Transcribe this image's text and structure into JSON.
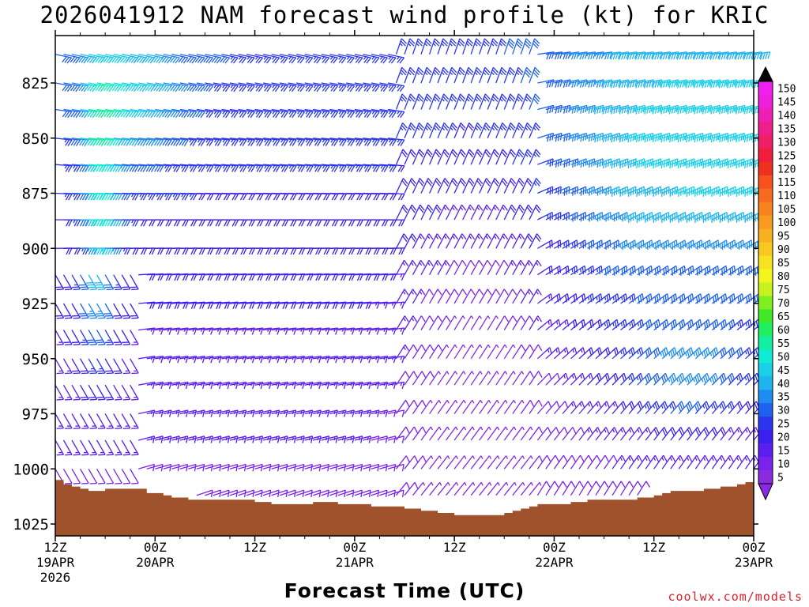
{
  "header": {
    "title": "2026041912 NAM forecast wind profile (kt) for KRIC",
    "x_axis_title": "Forecast Time (UTC)",
    "credit": "coolwx.com/models"
  },
  "chart_data": {
    "type": "wind-barb time-height section",
    "title": "2026041912 NAM forecast wind profile (kt) for KRIC",
    "model": "NAM",
    "init": "2026041912",
    "station": "KRIC",
    "units": "kt",
    "xlabel": "Forecast Time (UTC)",
    "ylabel": "",
    "x_range_hours": [
      0,
      84
    ],
    "y_range_mb": [
      1030,
      812
    ],
    "y_ticks": [
      825,
      850,
      875,
      900,
      925,
      950,
      975,
      1000,
      1025
    ],
    "x_ticks": [
      {
        "hour": 0,
        "label": "12Z",
        "sub": "19APR",
        "year": "2026"
      },
      {
        "hour": 12,
        "label": "00Z",
        "sub": "20APR",
        "year": ""
      },
      {
        "hour": 24,
        "label": "12Z",
        "sub": "",
        "year": ""
      },
      {
        "hour": 36,
        "label": "00Z",
        "sub": "21APR",
        "year": ""
      },
      {
        "hour": 48,
        "label": "12Z",
        "sub": "",
        "year": ""
      },
      {
        "hour": 60,
        "label": "00Z",
        "sub": "22APR",
        "year": ""
      },
      {
        "hour": 72,
        "label": "12Z",
        "sub": "",
        "year": ""
      },
      {
        "hour": 84,
        "label": "00Z",
        "sub": "23APR",
        "year": ""
      }
    ],
    "surface_pressure_mb": [
      [
        0,
        1005
      ],
      [
        1,
        1007
      ],
      [
        2,
        1008
      ],
      [
        3,
        1009
      ],
      [
        4,
        1010
      ],
      [
        6,
        1009
      ],
      [
        8,
        1009
      ],
      [
        10,
        1009
      ],
      [
        11,
        1011
      ],
      [
        12,
        1011
      ],
      [
        13,
        1012
      ],
      [
        14,
        1013
      ],
      [
        16,
        1014
      ],
      [
        18,
        1014
      ],
      [
        20,
        1014
      ],
      [
        22,
        1014
      ],
      [
        24,
        1015
      ],
      [
        26,
        1016
      ],
      [
        28,
        1016
      ],
      [
        30,
        1016
      ],
      [
        31,
        1015
      ],
      [
        32,
        1015
      ],
      [
        34,
        1016
      ],
      [
        36,
        1016
      ],
      [
        38,
        1017
      ],
      [
        40,
        1017
      ],
      [
        42,
        1018
      ],
      [
        44,
        1019
      ],
      [
        46,
        1020
      ],
      [
        48,
        1021
      ],
      [
        50,
        1021
      ],
      [
        52,
        1021
      ],
      [
        54,
        1020
      ],
      [
        55,
        1019
      ],
      [
        56,
        1018
      ],
      [
        57,
        1017
      ],
      [
        58,
        1016
      ],
      [
        60,
        1016
      ],
      [
        62,
        1015
      ],
      [
        64,
        1014
      ],
      [
        66,
        1014
      ],
      [
        68,
        1014
      ],
      [
        70,
        1013
      ],
      [
        72,
        1012
      ],
      [
        73,
        1011
      ],
      [
        74,
        1010
      ],
      [
        76,
        1010
      ],
      [
        78,
        1009
      ],
      [
        80,
        1008
      ],
      [
        82,
        1007
      ],
      [
        83,
        1006
      ],
      [
        84,
        1006
      ]
    ],
    "colorbar": {
      "min": 5,
      "max": 150,
      "step": 5,
      "labels": [
        150,
        145,
        140,
        135,
        130,
        125,
        120,
        115,
        110,
        105,
        100,
        95,
        90,
        85,
        80,
        75,
        70,
        65,
        60,
        55,
        50,
        45,
        40,
        35,
        30,
        25,
        20,
        15,
        10,
        5
      ],
      "colors": {
        "5": "#8a2be2",
        "10": "#7a22ee",
        "15": "#5b1ef2",
        "20": "#3b1ff0",
        "25": "#2a35f0",
        "30": "#1e60f0",
        "35": "#1e8cf2",
        "40": "#1eb4f0",
        "45": "#18d0e8",
        "50": "#10ecd4",
        "55": "#10f0a0",
        "60": "#20f060",
        "65": "#40e828",
        "70": "#7ef020",
        "75": "#c8f21e",
        "80": "#f5f51e",
        "85": "#f8e11e",
        "90": "#f8c81e",
        "95": "#f8b01e",
        "100": "#f89a1e",
        "105": "#f8821e",
        "110": "#f86a1e",
        "115": "#f8501e",
        "120": "#f0301e",
        "125": "#f01e3c",
        "130": "#f01e64",
        "135": "#f01e8c",
        "140": "#f01eb4",
        "145": "#f01edc",
        "150": "#f01ef0"
      }
    },
    "barb_sampling": {
      "hour_step": 1,
      "pressure_levels_mb": [
        812,
        825,
        837,
        850,
        862,
        875,
        887,
        900,
        912,
        925,
        937,
        950,
        962,
        975,
        987,
        1000,
        1012,
        1025
      ]
    }
  }
}
